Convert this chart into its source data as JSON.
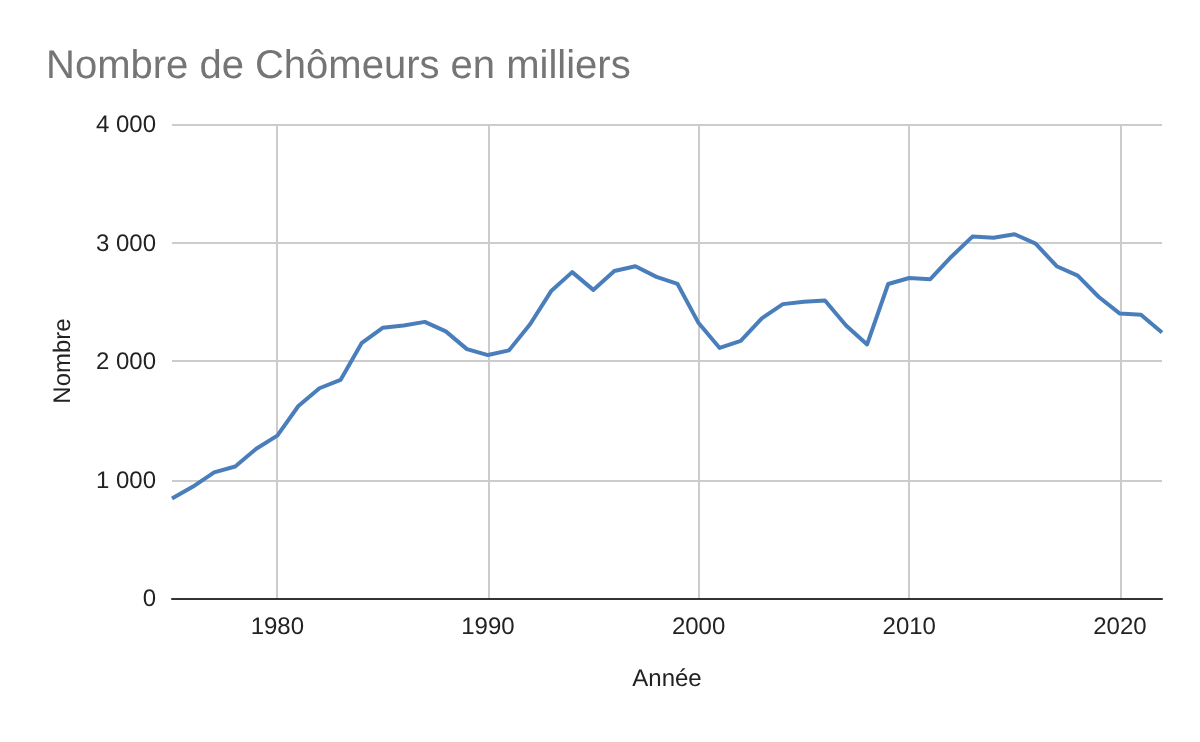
{
  "chart_data": {
    "type": "line",
    "title": "Nombre de Chômeurs en milliers",
    "xlabel": "Année",
    "ylabel": "Nombre",
    "x": [
      1975,
      1976,
      1977,
      1978,
      1979,
      1980,
      1981,
      1982,
      1983,
      1984,
      1985,
      1986,
      1987,
      1988,
      1989,
      1990,
      1991,
      1992,
      1993,
      1994,
      1995,
      1996,
      1997,
      1998,
      1999,
      2000,
      2001,
      2002,
      2003,
      2004,
      2005,
      2006,
      2007,
      2008,
      2009,
      2010,
      2011,
      2012,
      2013,
      2014,
      2015,
      2016,
      2017,
      2018,
      2019,
      2020,
      2021,
      2022
    ],
    "series": [
      {
        "color": "#4a7ebb",
        "values": [
          840,
          940,
          1060,
          1110,
          1260,
          1370,
          1620,
          1770,
          1840,
          2150,
          2280,
          2300,
          2330,
          2250,
          2100,
          2050,
          2090,
          2310,
          2590,
          2750,
          2600,
          2760,
          2800,
          2710,
          2650,
          2320,
          2110,
          2170,
          2360,
          2480,
          2500,
          2510,
          2300,
          2140,
          2650,
          2700,
          2690,
          2880,
          3050,
          3040,
          3070,
          2990,
          2800,
          2720,
          2540,
          2400,
          2390,
          2240
        ]
      }
    ],
    "xlim": [
      1975,
      2022
    ],
    "xticks": [
      1980,
      1990,
      2000,
      2010,
      2020
    ],
    "ylim": [
      0,
      4000
    ],
    "yticks": [
      {
        "value": 0,
        "label": "0"
      },
      {
        "value": 1000,
        "label": "1 000"
      },
      {
        "value": 2000,
        "label": "2 000"
      },
      {
        "value": 3000,
        "label": "3 000"
      },
      {
        "value": 4000,
        "label": "4 000"
      }
    ],
    "grid": true,
    "marker": "none",
    "line_style": "solid"
  }
}
